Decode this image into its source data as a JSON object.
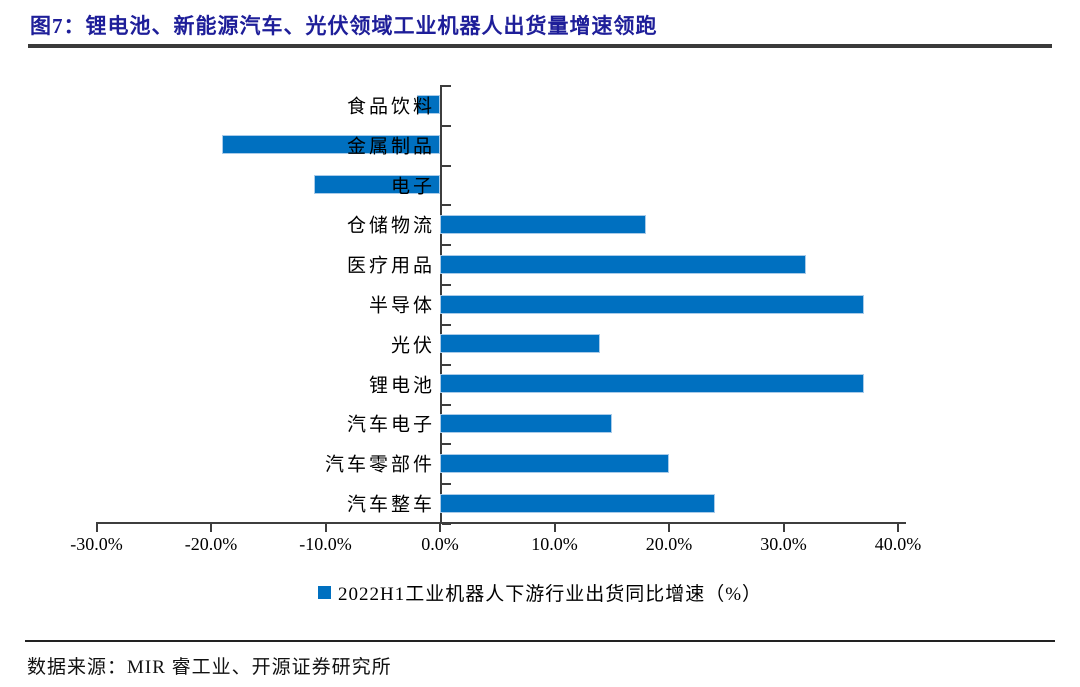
{
  "figure": {
    "title": "图7：锂电池、新能源汽车、光伏领域工业机器人出货量增速领跑",
    "source": "数据来源：MIR 睿工业、开源证券研究所"
  },
  "colors": {
    "bar": "#0070C0",
    "title_text": "#1e1e99",
    "axis": "#3d3d3d"
  },
  "chart_data": {
    "type": "bar",
    "orientation": "horizontal",
    "order": "top-to-bottom",
    "categories": [
      "食品饮料",
      "金属制品",
      "电子",
      "仓储物流",
      "医疗用品",
      "半导体",
      "光伏",
      "锂电池",
      "汽车电子",
      "汽车零部件",
      "汽车整车"
    ],
    "values": [
      -2,
      -19,
      -11,
      18,
      32,
      37,
      14,
      37,
      15,
      20,
      24
    ],
    "unit": "%",
    "series_name": "2022H1工业机器人下游行业出货同比增速（%）",
    "legend": [
      "2022H1工业机器人下游行业出货同比增速（%）"
    ],
    "legend_position": "bottom",
    "xlim": [
      -30,
      40
    ],
    "x_ticks": [
      -30,
      -20,
      -10,
      0,
      10,
      20,
      30,
      40
    ],
    "x_tick_labels": [
      "-30.0%",
      "-20.0%",
      "-10.0%",
      "0.0%",
      "10.0%",
      "20.0%",
      "30.0%",
      "40.0%"
    ],
    "grid": false,
    "title": "图7：锂电池、新能源汽车、光伏领域工业机器人出货量增速领跑",
    "xlabel": "",
    "ylabel": ""
  }
}
